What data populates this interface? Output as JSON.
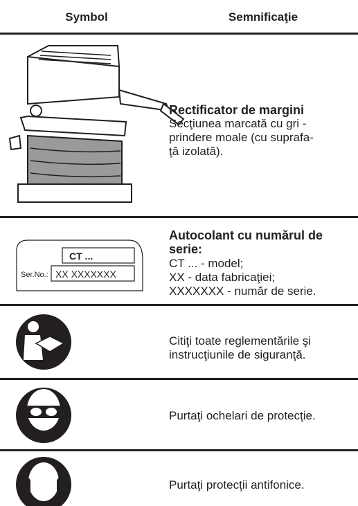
{
  "header": {
    "symbol": "Symbol",
    "meaning": "Semnificaţie"
  },
  "rows": [
    {
      "title": [
        "Rectificator de margini"
      ],
      "lines": [
        "Secţiunea marcată cu gri -",
        "prindere moale (cu suprafa-",
        "ţă izolată)."
      ]
    },
    {
      "label": {
        "model": "CT ...",
        "serial_caption": "Ser.No.:",
        "serial": "XX XXXXXXX"
      },
      "title": [
        "Autocolant cu numărul de",
        "serie:"
      ],
      "lines": [
        "CT ... - model;",
        "XX - data fabricaţiei;",
        "XXXXXXX - număr de serie."
      ]
    },
    {
      "title": [],
      "lines": [
        "Citiţi toate reglementările şi",
        "instrucţiunile de siguranţă."
      ]
    },
    {
      "title": [],
      "lines": [
        "Purtaţi ochelari de protecţie."
      ]
    },
    {
      "title": [],
      "lines": [
        "Purtaţi protecţii antifonice."
      ]
    }
  ]
}
